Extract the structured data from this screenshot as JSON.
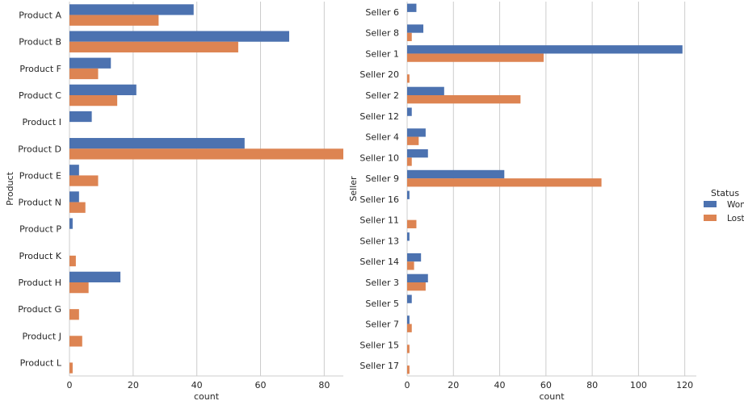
{
  "chart_data": [
    {
      "type": "bar",
      "orientation": "horizontal",
      "title": "",
      "xlabel": "count",
      "ylabel": "Product",
      "xlim": [
        0,
        86
      ],
      "xticks": [
        0,
        20,
        40,
        60,
        80
      ],
      "grid": true,
      "categories": [
        "Product A",
        "Product B",
        "Product F",
        "Product C",
        "Product I",
        "Product D",
        "Product E",
        "Product N",
        "Product P",
        "Product K",
        "Product H",
        "Product G",
        "Product J",
        "Product L"
      ],
      "series": [
        {
          "name": "Won",
          "color": "#4c72b0",
          "values": [
            39,
            69,
            13,
            21,
            7,
            55,
            3,
            3,
            1,
            0,
            16,
            0,
            0,
            0
          ]
        },
        {
          "name": "Lost",
          "color": "#dd8452",
          "values": [
            28,
            53,
            9,
            15,
            0,
            86,
            9,
            5,
            0,
            2,
            6,
            3,
            4,
            1
          ]
        }
      ]
    },
    {
      "type": "bar",
      "orientation": "horizontal",
      "title": "",
      "xlabel": "count",
      "ylabel": "Seller",
      "xlim": [
        0,
        125
      ],
      "xticks": [
        0,
        20,
        40,
        60,
        80,
        100,
        120
      ],
      "grid": true,
      "categories": [
        "Seller 6",
        "Seller 8",
        "Seller 1",
        "Seller 20",
        "Seller 2",
        "Seller 12",
        "Seller 4",
        "Seller 10",
        "Seller 9",
        "Seller 16",
        "Seller 11",
        "Seller 13",
        "Seller 14",
        "Seller 3",
        "Seller 5",
        "Seller 7",
        "Seller 15",
        "Seller 17"
      ],
      "series": [
        {
          "name": "Won",
          "color": "#4c72b0",
          "values": [
            4,
            7,
            119,
            0,
            16,
            2,
            8,
            9,
            42,
            1,
            0,
            1,
            6,
            9,
            2,
            1,
            0,
            0
          ]
        },
        {
          "name": "Lost",
          "color": "#dd8452",
          "values": [
            0,
            2,
            59,
            1,
            49,
            0,
            5,
            2,
            84,
            0,
            4,
            0,
            3,
            8,
            0,
            2,
            1,
            1
          ]
        }
      ]
    }
  ],
  "legend": {
    "title": "Status",
    "placement": "right",
    "entries": [
      {
        "label": "Won",
        "color": "#4c72b0"
      },
      {
        "label": "Lost",
        "color": "#dd8452"
      }
    ]
  }
}
